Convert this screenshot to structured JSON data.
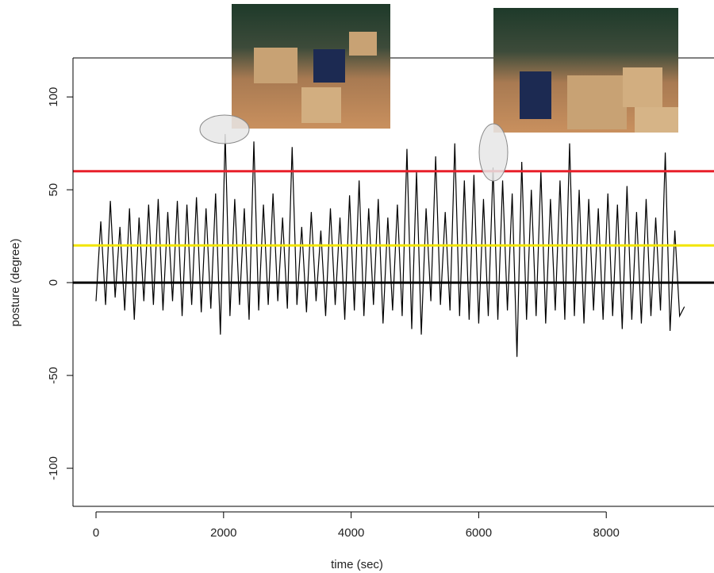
{
  "chart_data": {
    "type": "line",
    "xlabel": "time (sec)",
    "ylabel": "posture (degree)",
    "x": [
      0,
      75,
      150,
      225,
      300,
      375,
      450,
      525,
      600,
      675,
      750,
      825,
      900,
      975,
      1050,
      1125,
      1200,
      1275,
      1350,
      1425,
      1500,
      1575,
      1650,
      1725,
      1800,
      1875,
      1950,
      2025,
      2100,
      2175,
      2250,
      2325,
      2400,
      2475,
      2550,
      2625,
      2700,
      2775,
      2850,
      2925,
      3000,
      3075,
      3150,
      3225,
      3300,
      3375,
      3450,
      3525,
      3600,
      3675,
      3750,
      3825,
      3900,
      3975,
      4050,
      4125,
      4200,
      4275,
      4350,
      4425,
      4500,
      4575,
      4650,
      4725,
      4800,
      4875,
      4950,
      5025,
      5100,
      5175,
      5250,
      5325,
      5400,
      5475,
      5550,
      5625,
      5700,
      5775,
      5850,
      5925,
      6000,
      6075,
      6150,
      6225,
      6300,
      6375,
      6450,
      6525,
      6600,
      6675,
      6750,
      6825,
      6900,
      6975,
      7050,
      7125,
      7200,
      7275,
      7350,
      7425,
      7500,
      7575,
      7650,
      7725,
      7800,
      7875,
      7950,
      8025,
      8100,
      8175,
      8250,
      8325,
      8400,
      8475,
      8550,
      8625,
      8700,
      8775,
      8850,
      8925,
      9000,
      9075,
      9150,
      9225
    ],
    "values": [
      -10,
      33,
      -12,
      44,
      -8,
      30,
      -15,
      40,
      -20,
      35,
      -10,
      42,
      -12,
      45,
      -15,
      38,
      -10,
      44,
      -18,
      42,
      -12,
      46,
      -16,
      40,
      -14,
      48,
      -28,
      80,
      -18,
      45,
      -12,
      40,
      -20,
      76,
      -15,
      42,
      -12,
      48,
      -10,
      35,
      -14,
      73,
      -12,
      30,
      -16,
      38,
      -10,
      28,
      -18,
      40,
      -12,
      35,
      -20,
      47,
      -15,
      55,
      -18,
      40,
      -12,
      45,
      -22,
      35,
      -15,
      42,
      -18,
      72,
      -25,
      60,
      -28,
      40,
      -10,
      68,
      -12,
      38,
      -15,
      75,
      -18,
      55,
      -20,
      58,
      -22,
      45,
      -18,
      62,
      -20,
      55,
      -15,
      48,
      -40,
      65,
      -20,
      50,
      -18,
      60,
      -22,
      45,
      -15,
      55,
      -20,
      75,
      -18,
      50,
      -22,
      45,
      -15,
      40,
      -20,
      48,
      -18,
      42,
      -25,
      52,
      -20,
      38,
      -22,
      45,
      -18,
      35,
      -15,
      70,
      -26,
      28,
      -18,
      -13
    ],
    "color": "#000000",
    "hlines": [
      {
        "value": 60,
        "color": "#e8202a"
      },
      {
        "value": 20,
        "color": "#f2e500"
      },
      {
        "value": 0,
        "color": "#000000"
      }
    ],
    "xlim": [
      -361,
      9689
    ],
    "ylim": [
      -120.5,
      121
    ],
    "xticks": [
      0,
      2000,
      4000,
      6000,
      8000
    ],
    "yticks": [
      -100,
      -50,
      0,
      50,
      100
    ]
  }
}
